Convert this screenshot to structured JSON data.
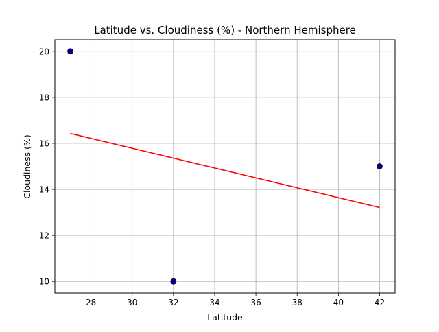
{
  "chart_data": {
    "type": "scatter",
    "title": "Latitude vs. Cloudiness (%) - Northern Hemisphere",
    "xlabel": "Latitude",
    "ylabel": "Cloudiness (%)",
    "xlim": [
      26.25,
      42.75
    ],
    "ylim": [
      9.5,
      20.5
    ],
    "xticks": [
      28,
      30,
      32,
      34,
      36,
      38,
      40,
      42
    ],
    "yticks": [
      10,
      12,
      14,
      16,
      18,
      20
    ],
    "grid": true,
    "series": [
      {
        "points": [
          {
            "x": 27,
            "y": 20
          },
          {
            "x": 32,
            "y": 10
          },
          {
            "x": 42,
            "y": 15
          }
        ]
      }
    ],
    "regression_line": {
      "x": [
        27,
        42
      ],
      "y": [
        16.43,
        13.21
      ]
    },
    "colors": {
      "points_fill": "#00008b",
      "points_edge": "#000000",
      "regression": "#ff0000",
      "grid": "#b0b0b0"
    }
  }
}
